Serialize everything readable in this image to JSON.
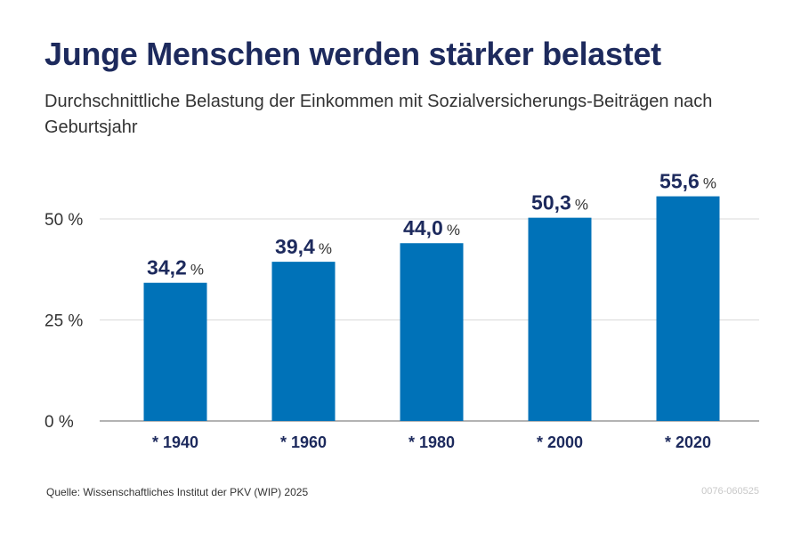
{
  "header": {
    "title": "Junge Menschen werden stärker belastet",
    "subtitle": "Durchschnittliche Belastung der Einkommen mit Sozialversicherungs-Beiträgen nach Geburtsjahr"
  },
  "chart_data": {
    "type": "bar",
    "categories": [
      "* 1940",
      "* 1960",
      "* 1980",
      "* 2000",
      "* 2020"
    ],
    "values": [
      34.2,
      39.4,
      44.0,
      50.3,
      55.6
    ],
    "value_labels": [
      "34,2",
      "39,4",
      "44,0",
      "50,3",
      "55,6"
    ],
    "value_unit": "%",
    "yticks": [
      0,
      25,
      50
    ],
    "ytick_labels": [
      "0 %",
      "25 %",
      "50 %"
    ],
    "ylim": [
      0,
      60
    ],
    "grid": true,
    "bar_color": "#0072b8",
    "label_color": "#1d2a5d"
  },
  "footer": {
    "source": "Quelle: Wissenschaftliches Institut der PKV (WIP) 2025",
    "code": "0076-060525"
  }
}
